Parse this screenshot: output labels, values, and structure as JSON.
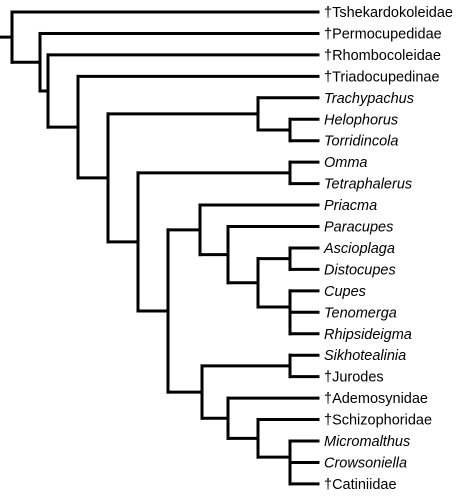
{
  "tree": {
    "line_color": "#000000",
    "taxa": [
      {
        "label": "†Tshekardokoleidae",
        "italic": false
      },
      {
        "label": "†Permocupedidae",
        "italic": false
      },
      {
        "label": "†Rhombocoleidae",
        "italic": false
      },
      {
        "label": "†Triadocupedinae",
        "italic": false
      },
      {
        "label": "Trachypachus",
        "italic": true
      },
      {
        "label": "Helophorus",
        "italic": true
      },
      {
        "label": "Torridincola",
        "italic": true
      },
      {
        "label": "Omma",
        "italic": true
      },
      {
        "label": "Tetraphalerus",
        "italic": true
      },
      {
        "label": "Priacma",
        "italic": true
      },
      {
        "label": "Paracupes",
        "italic": true
      },
      {
        "label": "Ascioplaga",
        "italic": true
      },
      {
        "label": "Distocupes",
        "italic": true
      },
      {
        "label": "Cupes",
        "italic": true
      },
      {
        "label": "Tenomerga",
        "italic": true
      },
      {
        "label": "Rhipsideigma",
        "italic": true
      },
      {
        "label": "Sikhotealinia",
        "italic": true
      },
      {
        "label": "†Jurodes",
        "italic": false
      },
      {
        "label": "†Ademosynidae",
        "italic": false
      },
      {
        "label": "†Schizophoridae",
        "italic": false
      },
      {
        "label": "Micromalthus",
        "italic": true
      },
      {
        "label": "Crowsoniella",
        "italic": true
      },
      {
        "label": "†Catiniidae",
        "italic": false
      }
    ]
  }
}
